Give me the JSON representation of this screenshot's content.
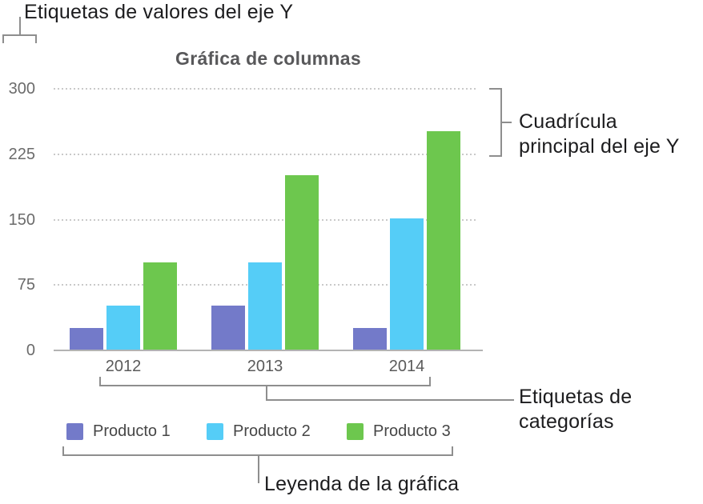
{
  "annotations": {
    "y_value_labels": {
      "text": "Etiquetas de valores del eje Y"
    },
    "y_major_gridlines": {
      "line1": "Cuadrícula",
      "line2": "principal del eje Y"
    },
    "category_labels": {
      "line1": "Etiquetas de",
      "line2": "categorías"
    },
    "chart_legend": {
      "text": "Leyenda de la gráfica"
    }
  },
  "colors": {
    "product1": "#737AC9",
    "product2": "#55CDF7",
    "product3": "#6DC74E",
    "gridline": "#C9C9C9",
    "axis_baseline": "#B3B3B3",
    "callout_line": "#8E8E8E",
    "annotation_text": "#1C1C1E",
    "title_text": "#58585A",
    "axis_text": "#6B6B6B"
  },
  "chart_data": {
    "type": "bar",
    "title": "Gráfica de columnas",
    "categories": [
      "2012",
      "2013",
      "2014"
    ],
    "series": [
      {
        "name": "Producto 1",
        "color": "#737AC9",
        "values": [
          25,
          50,
          25
        ]
      },
      {
        "name": "Producto 2",
        "color": "#55CDF7",
        "values": [
          50,
          100,
          150
        ]
      },
      {
        "name": "Producto 3",
        "color": "#6DC74E",
        "values": [
          100,
          200,
          250
        ]
      }
    ],
    "y_ticks": [
      0,
      75,
      150,
      225,
      300
    ],
    "ylim": [
      0,
      300
    ],
    "grid": "horizontal dotted major gridlines",
    "legend_position": "bottom"
  }
}
